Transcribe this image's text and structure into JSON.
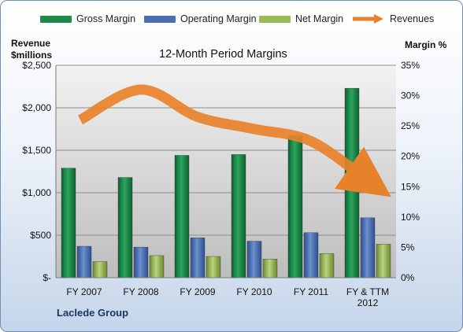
{
  "chart_data": {
    "type": "bar",
    "title": "12-Month Period Margins",
    "categories": [
      "FY 2007",
      "FY 2008",
      "FY 2009",
      "FY 2010",
      "FY 2011",
      "FY & TTM 2012"
    ],
    "category_lines": [
      [
        "FY 2007"
      ],
      [
        "FY 2008"
      ],
      [
        "FY 2009"
      ],
      [
        "FY 2010"
      ],
      [
        "FY 2011"
      ],
      [
        "FY & TTM",
        "2012"
      ]
    ],
    "y_left": {
      "label_line1": "Revenue",
      "label_line2": "$millions",
      "ylim": [
        0,
        2500
      ],
      "ticks": [
        "$-",
        "$500",
        "$1,000",
        "$1,500",
        "$2,000",
        "$2,500"
      ]
    },
    "y_right": {
      "label": "Margin %",
      "ylim": [
        0,
        35
      ],
      "ticks": [
        "0%",
        "5%",
        "10%",
        "15%",
        "20%",
        "25%",
        "30%",
        "35%"
      ]
    },
    "series": [
      {
        "name": "Gross Margin",
        "axis": "left",
        "color": "#1e8a4a",
        "values": [
          1290,
          1180,
          1440,
          1450,
          1670,
          2230
        ]
      },
      {
        "name": "Operating Margin",
        "axis": "left",
        "color": "#4a6fb0",
        "values": [
          370,
          360,
          470,
          430,
          530,
          705
        ]
      },
      {
        "name": "Net Margin",
        "axis": "left",
        "color": "#9bbb59",
        "values": [
          190,
          260,
          250,
          220,
          285,
          395
        ]
      }
    ],
    "revenue_line": {
      "name": "Revenues",
      "axis": "right",
      "color": "#e8822a",
      "values_pct": [
        26,
        31,
        26.5,
        24.5,
        22.5,
        16
      ]
    },
    "grid": true,
    "legend_position": "top",
    "footer": "Laclede Group"
  }
}
